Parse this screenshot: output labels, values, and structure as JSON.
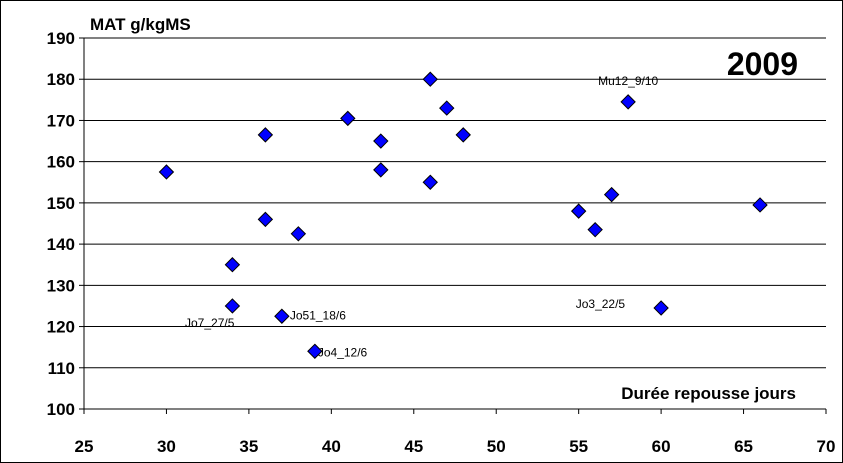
{
  "chart_data": {
    "type": "scatter",
    "title": "2009",
    "xlabel": "Durée repousse jours",
    "ylabel": "MAT g/kgMS",
    "xlim": [
      25,
      70
    ],
    "ylim": [
      100,
      190
    ],
    "x_ticks": [
      "25",
      "30",
      "35",
      "40",
      "45",
      "50",
      "55",
      "60",
      "65",
      "70"
    ],
    "y_ticks": [
      "100",
      "110",
      "120",
      "130",
      "140",
      "150",
      "160",
      "170",
      "180",
      "190"
    ],
    "grid": "horizontal",
    "marker_color": "#0000ff",
    "points": [
      {
        "x": 30,
        "y": 157.5
      },
      {
        "x": 34,
        "y": 135
      },
      {
        "x": 34,
        "y": 125,
        "label": "Jo7_27/5"
      },
      {
        "x": 36,
        "y": 166.5
      },
      {
        "x": 36,
        "y": 146
      },
      {
        "x": 37,
        "y": 122.5,
        "label": "Jo51_18/6"
      },
      {
        "x": 38,
        "y": 142.5
      },
      {
        "x": 39,
        "y": 114,
        "label": "Jo4_12/6"
      },
      {
        "x": 41,
        "y": 170.5
      },
      {
        "x": 43,
        "y": 165
      },
      {
        "x": 43,
        "y": 158
      },
      {
        "x": 46,
        "y": 180
      },
      {
        "x": 46,
        "y": 155
      },
      {
        "x": 47,
        "y": 173
      },
      {
        "x": 48,
        "y": 166.5
      },
      {
        "x": 55,
        "y": 148
      },
      {
        "x": 56,
        "y": 143.5
      },
      {
        "x": 57,
        "y": 152
      },
      {
        "x": 58,
        "y": 174.5,
        "label": "Mu12_9/10"
      },
      {
        "x": 60,
        "y": 124.5,
        "label": "Jo3_22/5"
      },
      {
        "x": 66,
        "y": 149.5
      }
    ]
  }
}
